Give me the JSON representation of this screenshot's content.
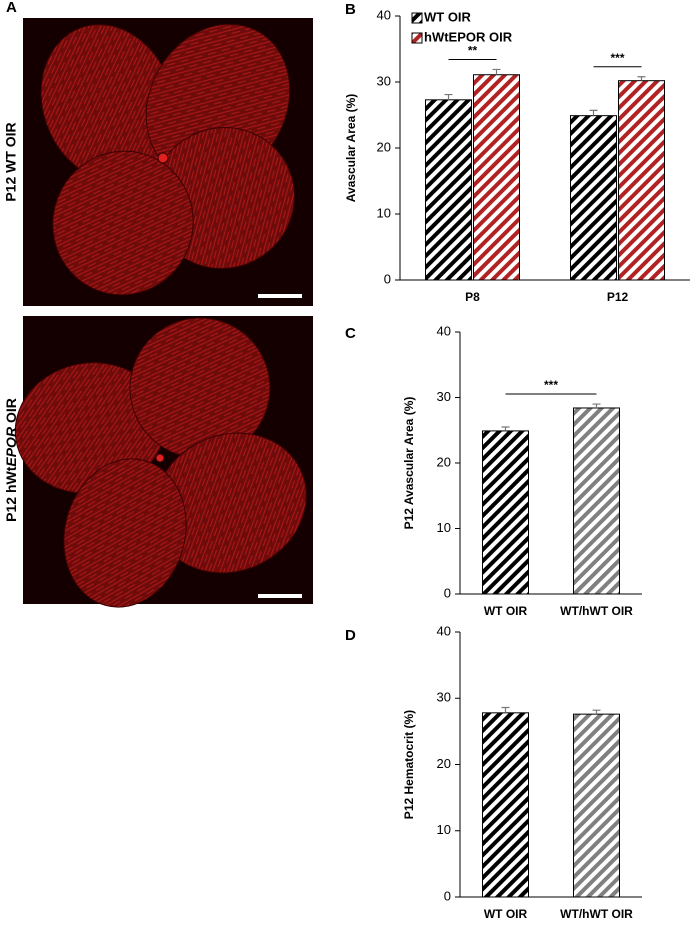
{
  "panel_a": {
    "panel_label": "A",
    "images": [
      {
        "label": "P12 WT OIR"
      },
      {
        "label_parts": [
          "P12 hWt",
          "EPOR",
          " OIR"
        ]
      }
    ]
  },
  "chart_data": [
    {
      "type": "bar",
      "panel_label": "B",
      "y_label": "Avascular Area (%)",
      "categories": [
        "P8",
        "P12"
      ],
      "series": [
        {
          "name": "WT OIR",
          "color": "#000000",
          "values": [
            27.3,
            24.9
          ],
          "errors": [
            0.8,
            0.8
          ]
        },
        {
          "name": "hWtEPOR OIR",
          "color": "#b22222",
          "values": [
            31.1,
            30.2
          ],
          "errors": [
            0.8,
            0.6
          ]
        }
      ],
      "ylim": [
        0,
        40
      ],
      "yticks": [
        0,
        10,
        20,
        30,
        40
      ],
      "annotations": [
        {
          "text": "**",
          "category": "P8"
        },
        {
          "text": "***",
          "category": "P12"
        }
      ]
    },
    {
      "type": "bar",
      "panel_label": "C",
      "y_label": "P12 Avascular Area (%)",
      "categories": [
        "WT OIR",
        "WT/hWT OIR"
      ],
      "series": [
        {
          "colors": [
            "#000000",
            "#808080"
          ],
          "values": [
            24.9,
            28.4
          ],
          "errors": [
            0.6,
            0.6
          ]
        }
      ],
      "ylim": [
        0,
        40
      ],
      "yticks": [
        0,
        10,
        20,
        30,
        40
      ],
      "annotations": [
        {
          "text": "***"
        }
      ]
    },
    {
      "type": "bar",
      "panel_label": "D",
      "y_label": "P12 Hematocrit (%)",
      "categories": [
        "WT OIR",
        "WT/hWT OIR"
      ],
      "series": [
        {
          "colors": [
            "#000000",
            "#808080"
          ],
          "values": [
            27.8,
            27.6
          ],
          "errors": [
            0.8,
            0.6
          ]
        }
      ],
      "ylim": [
        0,
        40
      ],
      "yticks": [
        0,
        10,
        20,
        30,
        40
      ]
    }
  ]
}
